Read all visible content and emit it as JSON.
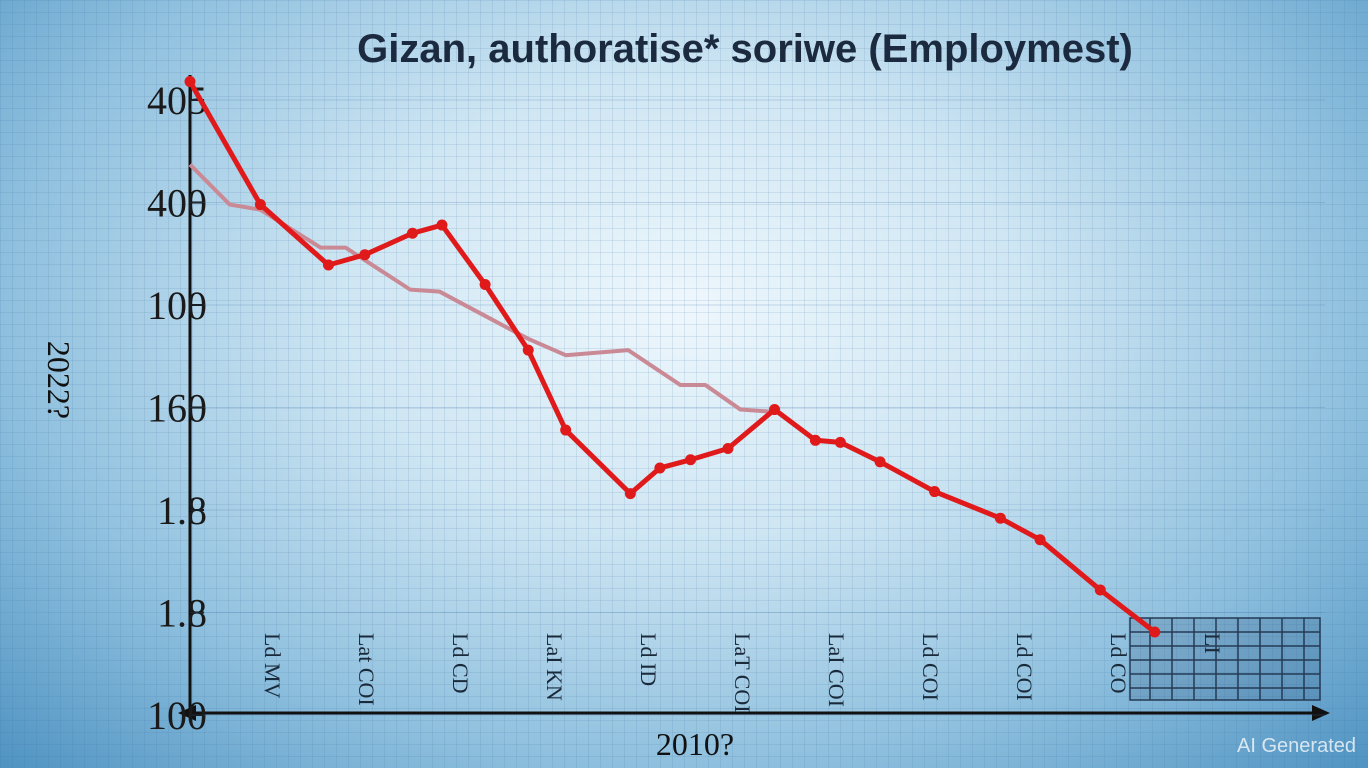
{
  "chart_data": {
    "type": "line",
    "title": "Gizan, authoratise* soriwe (Employmest)",
    "x_label": "2010?",
    "y_label": "2022?",
    "watermark": "AI Generated",
    "xlim": [
      0,
      100
    ],
    "ylim": [
      0,
      6
    ],
    "yticks": [
      {
        "value": 0,
        "label": "100"
      },
      {
        "value": 1,
        "label": "1.8"
      },
      {
        "value": 2,
        "label": "1.8"
      },
      {
        "value": 3,
        "label": "160"
      },
      {
        "value": 4,
        "label": "100"
      },
      {
        "value": 5,
        "label": "400"
      },
      {
        "value": 6,
        "label": "405"
      }
    ],
    "x_tick_texts": [
      "Ld MV",
      "Lat COI",
      "Ld CD",
      "LaI KN",
      "Ld ID",
      "LaT COI",
      "LaI COI",
      "Ld COI",
      "Ld COI",
      "Ld CO",
      "LI"
    ],
    "grid": true,
    "series": [
      {
        "color": "#c98a96",
        "x": [
          0,
          3.5,
          6.2,
          11.5,
          13.7,
          19.4,
          22.0,
          26.4,
          29.8,
          33.1,
          38.6,
          43.2,
          45.4,
          48.5,
          51.1
        ],
        "values": [
          5.37,
          4.98,
          4.93,
          4.56,
          4.56,
          4.15,
          4.13,
          3.87,
          3.67,
          3.51,
          3.56,
          3.22,
          3.22,
          2.98,
          2.96
        ],
        "markers": false
      },
      {
        "color": "#e01a1a",
        "x": [
          0,
          6.2,
          12.2,
          15.4,
          19.6,
          22.2,
          26.0,
          29.8,
          33.1,
          38.8,
          41.4,
          44.1,
          47.4,
          51.5,
          55.1,
          57.3,
          60.8,
          65.6,
          71.4,
          74.9,
          80.2,
          85.0
        ],
        "values": [
          6.18,
          4.98,
          4.39,
          4.49,
          4.7,
          4.78,
          4.2,
          3.56,
          2.78,
          2.16,
          2.41,
          2.49,
          2.6,
          2.98,
          2.68,
          2.66,
          2.47,
          2.18,
          1.92,
          1.71,
          1.22,
          0.81
        ],
        "markers": true
      }
    ]
  }
}
